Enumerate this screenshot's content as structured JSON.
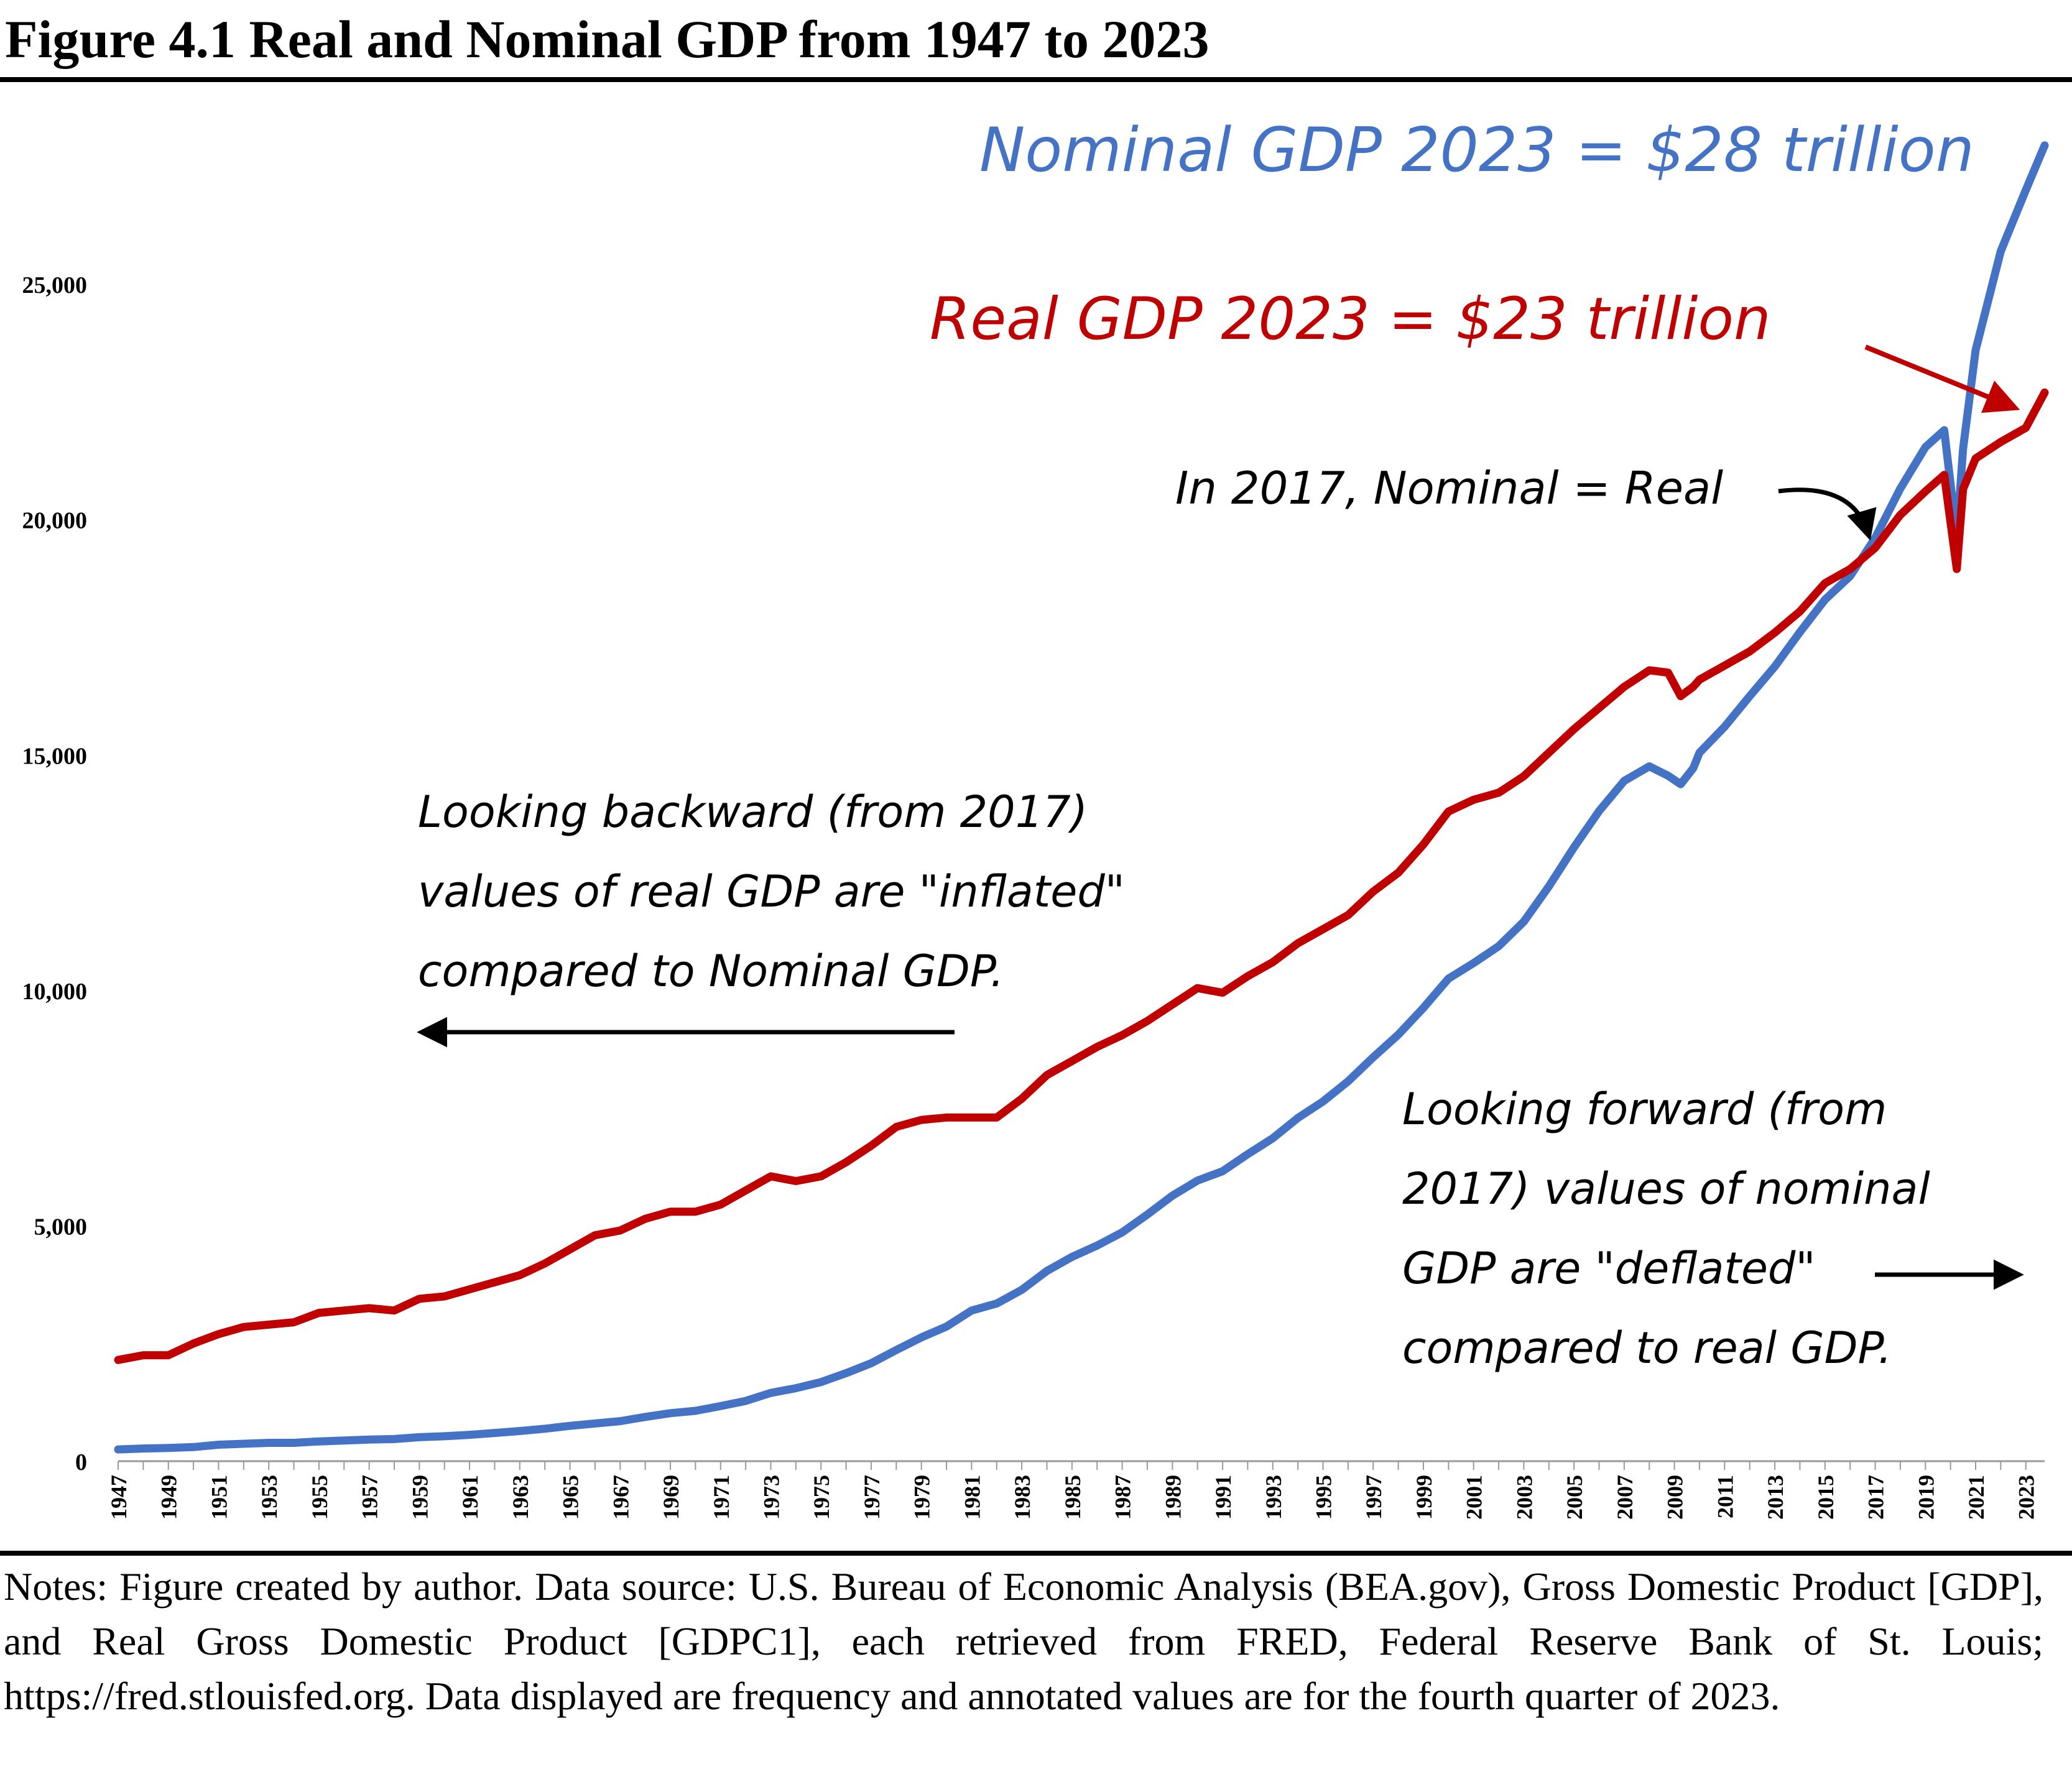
{
  "figure_title": "Figure 4.1 Real and Nominal GDP from 1947 to 2023",
  "notes": "Notes: Figure created by author. Data source: U.S. Bureau of Economic Analysis (BEA.gov), Gross Domestic Product [GDP], and Real Gross Domestic Product [GDPC1], each retrieved from FRED, Federal Reserve Bank of St. Louis; https://fred.stlouisfed.org. Data displayed are frequency and annotated values are for the fourth quarter of 2023.",
  "annotations": {
    "nominal_2023": "Nominal GDP 2023 = $28 trillion",
    "real_2023": "Real GDP 2023 = $23 trillion",
    "equal_2017": "In 2017, Nominal = Real",
    "backward": [
      "Looking backward (from 2017)",
      "values of real GDP are \"inflated\"",
      "compared to Nominal GDP."
    ],
    "forward": [
      "Looking forward (from",
      "2017) values of nominal",
      "GDP are \"deflated\"",
      "compared to real GDP."
    ]
  },
  "colors": {
    "nominal": "#4472C4",
    "real": "#C00000",
    "text": "#000000"
  },
  "chart_data": {
    "type": "line",
    "title": "",
    "xlabel": "",
    "ylabel": "",
    "xlim": [
      1947,
      2023.75
    ],
    "ylim": [
      0,
      28000
    ],
    "y_ticks": [
      0,
      5000,
      10000,
      15000,
      20000,
      25000
    ],
    "y_tick_labels": [
      "0",
      "5,000",
      "10,000",
      "15,000",
      "20,000",
      "25,000"
    ],
    "x_tick_labels": [
      "1947",
      "1949",
      "1951",
      "1953",
      "1955",
      "1957",
      "1959",
      "1961",
      "1963",
      "1965",
      "1967",
      "1969",
      "1971",
      "1973",
      "1975",
      "1977",
      "1979",
      "1981",
      "1983",
      "1985",
      "1987",
      "1989",
      "1991",
      "1993",
      "1995",
      "1997",
      "1999",
      "2001",
      "2003",
      "2005",
      "2007",
      "2009",
      "2011",
      "2013",
      "2015",
      "2017",
      "2019",
      "2021",
      "2023"
    ],
    "grid": false,
    "legend": "none",
    "series": [
      {
        "key": "real",
        "x": [
          1947,
          1948,
          1949,
          1950,
          1951,
          1952,
          1953,
          1954,
          1955,
          1956,
          1957,
          1958,
          1959,
          1960,
          1961,
          1962,
          1963,
          1964,
          1965,
          1966,
          1967,
          1968,
          1969,
          1970,
          1971,
          1972,
          1973,
          1974,
          1975,
          1976,
          1977,
          1978,
          1979,
          1980,
          1981,
          1982,
          1983,
          1984,
          1985,
          1986,
          1987,
          1988,
          1989,
          1990,
          1991,
          1992,
          1993,
          1994,
          1995,
          1996,
          1997,
          1998,
          1999,
          2000,
          2001,
          2002,
          2003,
          2004,
          2005,
          2006,
          2007,
          2008,
          2008.75,
          2009.25,
          2009.75,
          2010,
          2011,
          2012,
          2013,
          2014,
          2015,
          2016,
          2017,
          2018,
          2019,
          2019.75,
          2020.25,
          2020.5,
          2021,
          2022,
          2023,
          2023.75
        ],
        "values": [
          2150,
          2250,
          2250,
          2500,
          2700,
          2850,
          2900,
          2950,
          3150,
          3200,
          3250,
          3200,
          3450,
          3500,
          3650,
          3800,
          3950,
          4200,
          4500,
          4800,
          4900,
          5150,
          5300,
          5300,
          5450,
          5750,
          6050,
          5950,
          6050,
          6350,
          6700,
          7100,
          7250,
          7300,
          7300,
          7300,
          7700,
          8200,
          8500,
          8800,
          9050,
          9350,
          9700,
          10050,
          9950,
          10300,
          10600,
          11000,
          11300,
          11600,
          12100,
          12500,
          13100,
          13800,
          14050,
          14200,
          14550,
          15050,
          15550,
          16000,
          16450,
          16800,
          16750,
          16250,
          16450,
          16600,
          16900,
          17200,
          17600,
          18050,
          18650,
          18950,
          19400,
          20100,
          20600,
          20950,
          18950,
          20650,
          21300,
          21650,
          21950,
          22700
        ]
      },
      {
        "key": "nominal",
        "x": [
          1947,
          1948,
          1949,
          1950,
          1951,
          1952,
          1953,
          1954,
          1955,
          1956,
          1957,
          1958,
          1959,
          1960,
          1961,
          1962,
          1963,
          1964,
          1965,
          1966,
          1967,
          1968,
          1969,
          1970,
          1971,
          1972,
          1973,
          1974,
          1975,
          1976,
          1977,
          1978,
          1979,
          1980,
          1981,
          1982,
          1983,
          1984,
          1985,
          1986,
          1987,
          1988,
          1989,
          1990,
          1991,
          1992,
          1993,
          1994,
          1995,
          1996,
          1997,
          1998,
          1999,
          2000,
          2001,
          2002,
          2003,
          2004,
          2005,
          2006,
          2007,
          2008,
          2008.75,
          2009.25,
          2009.75,
          2010,
          2011,
          2012,
          2013,
          2014,
          2015,
          2016,
          2017,
          2018,
          2019,
          2019.75,
          2020.25,
          2020.5,
          2021,
          2022,
          2023,
          2023.75
        ],
        "values": [
          250,
          270,
          280,
          300,
          350,
          370,
          390,
          390,
          420,
          440,
          460,
          470,
          510,
          530,
          560,
          600,
          640,
          690,
          750,
          800,
          850,
          940,
          1020,
          1070,
          1170,
          1280,
          1450,
          1550,
          1680,
          1870,
          2080,
          2360,
          2630,
          2860,
          3200,
          3350,
          3640,
          4040,
          4340,
          4580,
          4860,
          5240,
          5640,
          5960,
          6160,
          6520,
          6860,
          7290,
          7640,
          8070,
          8580,
          9060,
          9630,
          10250,
          10580,
          10940,
          11460,
          12210,
          13040,
          13810,
          14450,
          14760,
          14560,
          14380,
          14720,
          15050,
          15600,
          16250,
          16880,
          17610,
          18300,
          18800,
          19610,
          20660,
          21540,
          21900,
          19640,
          21500,
          23600,
          25700,
          27000,
          27950
        ]
      }
    ]
  }
}
